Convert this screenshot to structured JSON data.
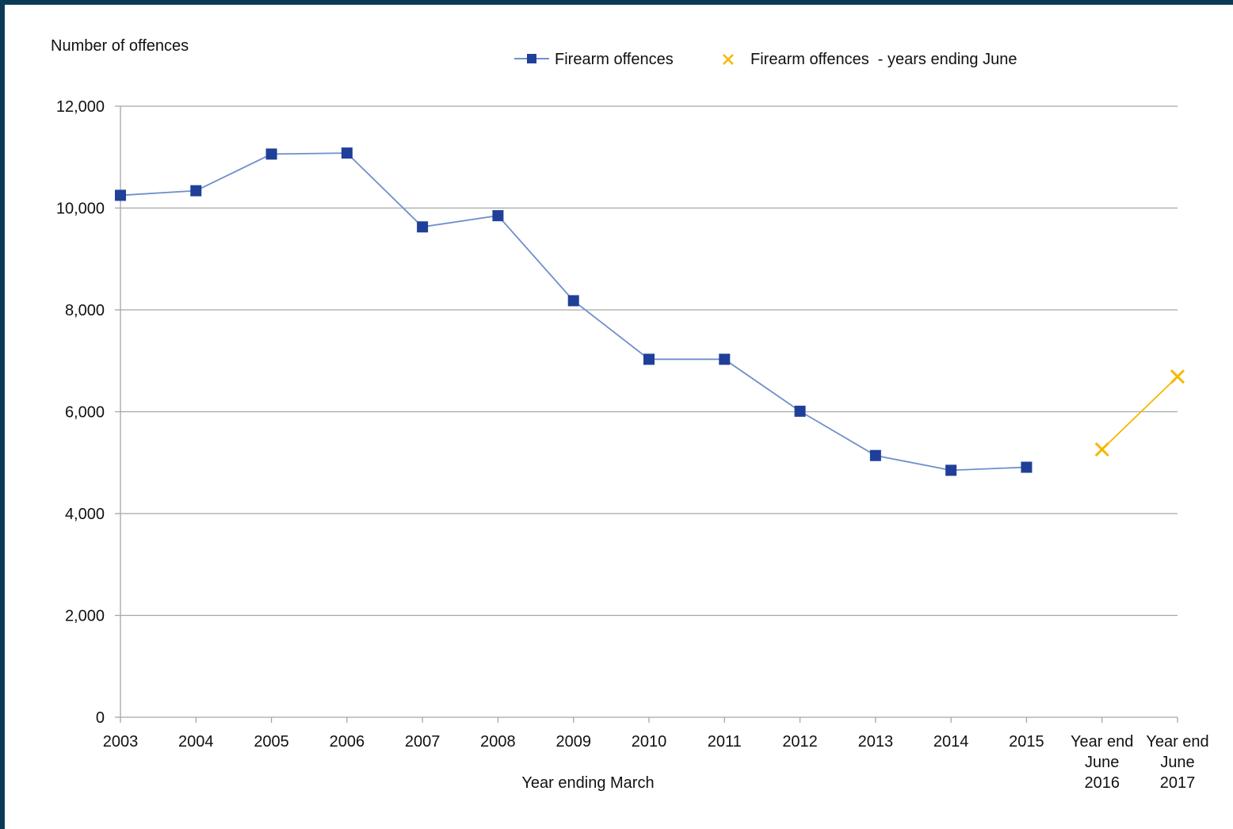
{
  "chart_data": {
    "type": "line",
    "ylabel": "Number of offences",
    "xlabel": "Year ending March",
    "ylim": [
      0,
      12000
    ],
    "yticks": [
      "0",
      "2,000",
      "4,000",
      "6,000",
      "8,000",
      "10,000",
      "12,000"
    ],
    "categories": [
      [
        "2003"
      ],
      [
        "2004"
      ],
      [
        "2005"
      ],
      [
        "2006"
      ],
      [
        "2007"
      ],
      [
        "2008"
      ],
      [
        "2009"
      ],
      [
        "2010"
      ],
      [
        "2011"
      ],
      [
        "2012"
      ],
      [
        "2013"
      ],
      [
        "2014"
      ],
      [
        "2015"
      ],
      [
        "Year end",
        "June",
        "2016"
      ],
      [
        "Year end",
        "June",
        "2017"
      ]
    ],
    "grid": true,
    "legend_position": "top",
    "series": [
      {
        "name": "Firearm offences",
        "marker": "square",
        "color": "#1f3f99",
        "line_color": "#6f8fcb",
        "values": [
          10250,
          10340,
          11060,
          11080,
          9630,
          9850,
          8180,
          7030,
          7030,
          6010,
          5140,
          4850,
          4910,
          null,
          null
        ]
      },
      {
        "name": "Firearm offences  - years ending June",
        "marker": "x",
        "color": "#f5b800",
        "line_color": "#f5b800",
        "values": [
          null,
          null,
          null,
          null,
          null,
          null,
          null,
          null,
          null,
          null,
          null,
          null,
          null,
          5260,
          6690
        ]
      }
    ]
  }
}
